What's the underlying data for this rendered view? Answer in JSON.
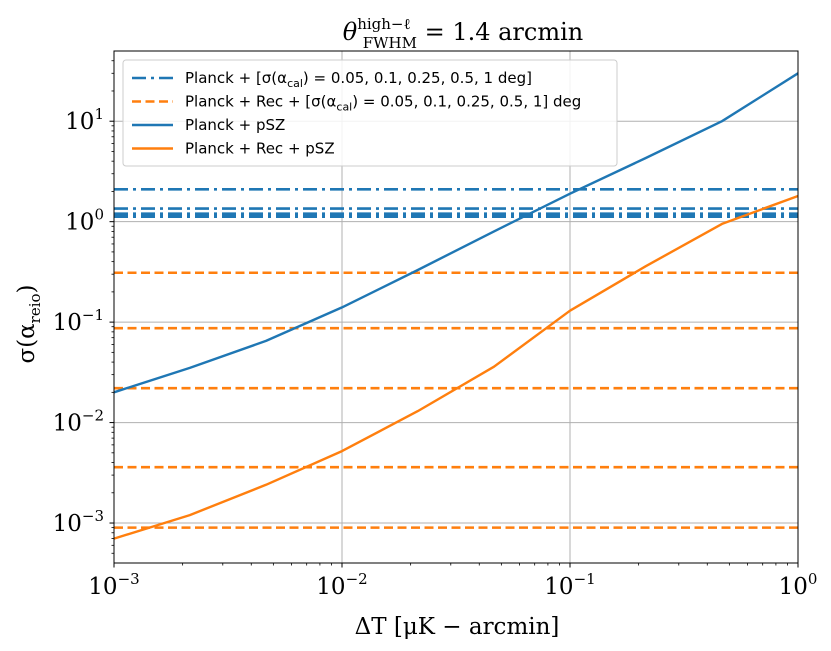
{
  "chart_data": {
    "type": "line",
    "title_main": "θ",
    "title_sup": "high−ℓ",
    "title_sub": "FWHM",
    "title_rest": " = 1.4 arcmin",
    "xlabel": "ΔT [μK − arcmin]",
    "ylabel": "σ(α",
    "ylabel_sub": "reio",
    "ylabel_close": ")",
    "x_scale": "log",
    "y_scale": "log",
    "xlim": [
      0.001,
      1
    ],
    "ylim": [
      0.0004,
      50
    ],
    "x_ticks": [
      {
        "value": 0.001,
        "base": "10",
        "exp": "−3"
      },
      {
        "value": 0.01,
        "base": "10",
        "exp": "−2"
      },
      {
        "value": 0.1,
        "base": "10",
        "exp": "−1"
      },
      {
        "value": 1,
        "base": "10",
        "exp": "0"
      }
    ],
    "y_ticks": [
      {
        "value": 0.001,
        "base": "10",
        "exp": "−3"
      },
      {
        "value": 0.01,
        "base": "10",
        "exp": "−2"
      },
      {
        "value": 0.1,
        "base": "10",
        "exp": "−1"
      },
      {
        "value": 1,
        "base": "10",
        "exp": "0"
      },
      {
        "value": 10,
        "base": "10",
        "exp": "1"
      }
    ],
    "grid": true,
    "legend_position": "top-left",
    "series": [
      {
        "name": "Planck + [σ(α_cal) = 0.05, 0.1, 0.25, 0.5, 1 deg]",
        "legend_pre": "Planck + [σ(α",
        "legend_sub": "cal",
        "legend_post": ") = 0.05, 0.1, 0.25, 0.5, 1 deg]",
        "color": "#1f77b4",
        "style": "dashdot",
        "kind": "hlines",
        "values": [
          1.12,
          1.16,
          1.2,
          1.35,
          2.1
        ]
      },
      {
        "name": "Planck + Rec + [σ(α_cal) = 0.05, 0.1, 0.25, 0.5, 1] deg",
        "legend_pre": "Planck + Rec + [σ(α",
        "legend_sub": "cal",
        "legend_post": ") = 0.05, 0.1, 0.25, 0.5, 1] deg",
        "color": "#ff7f0e",
        "style": "dashed",
        "kind": "hlines",
        "values": [
          0.0009,
          0.0036,
          0.022,
          0.087,
          0.31
        ]
      },
      {
        "name": "Planck + pSZ",
        "legend_pre": "Planck + pSZ",
        "legend_sub": "",
        "legend_post": "",
        "color": "#1f77b4",
        "style": "solid",
        "kind": "line",
        "x": [
          0.001,
          0.00215,
          0.00464,
          0.01,
          0.0215,
          0.0464,
          0.1,
          0.215,
          0.464,
          1
        ],
        "y": [
          0.02,
          0.035,
          0.065,
          0.14,
          0.33,
          0.8,
          1.9,
          4.3,
          10,
          30
        ]
      },
      {
        "name": "Planck + Rec + pSZ",
        "legend_pre": "Planck + Rec + pSZ",
        "legend_sub": "",
        "legend_post": "",
        "color": "#ff7f0e",
        "style": "solid",
        "kind": "line",
        "x": [
          0.001,
          0.00215,
          0.00464,
          0.01,
          0.0215,
          0.0464,
          0.1,
          0.215,
          0.464,
          1
        ],
        "y": [
          0.0007,
          0.0012,
          0.0024,
          0.0052,
          0.013,
          0.036,
          0.13,
          0.36,
          0.95,
          1.8
        ]
      }
    ]
  }
}
